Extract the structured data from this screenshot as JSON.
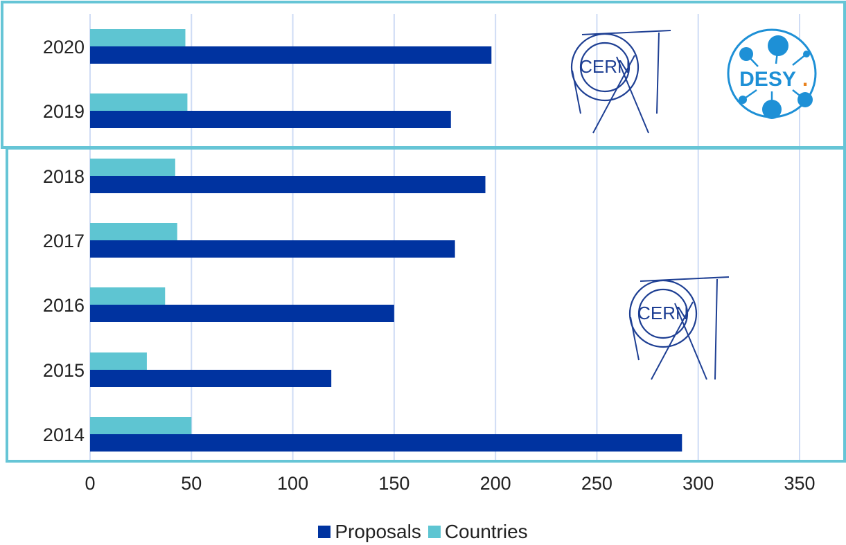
{
  "chart_data": {
    "type": "bar",
    "orientation": "horizontal",
    "categories": [
      "2020",
      "2019",
      "2018",
      "2017",
      "2016",
      "2015",
      "2014"
    ],
    "series": [
      {
        "name": "Proposals",
        "values": [
          198,
          178,
          195,
          180,
          150,
          119,
          292
        ],
        "color": "#0033a0"
      },
      {
        "name": "Countries",
        "values": [
          47,
          48,
          42,
          43,
          37,
          28,
          50
        ],
        "color": "#5ec5d2"
      }
    ],
    "xlim": [
      0,
      350
    ],
    "xticks": [
      0,
      50,
      100,
      150,
      200,
      250,
      300,
      350
    ],
    "grid": "vertical",
    "legend_position": "bottom-center",
    "highlight_boxes": [
      {
        "years": [
          "2020",
          "2019"
        ],
        "logos": [
          "CERN",
          "DESY"
        ]
      },
      {
        "years": [
          "2018",
          "2017",
          "2016",
          "2015",
          "2014"
        ],
        "logos": [
          "CERN"
        ]
      }
    ],
    "box_color": "#66c5d6",
    "grid_color": "#cfdcf5"
  },
  "logos": {
    "cern": "CERN",
    "desy": "DESY",
    "desy_dot": ".",
    "cern_color": "#1e3f93",
    "desy_color": "#1e90d6",
    "desy_dot_color": "#e8821e"
  }
}
